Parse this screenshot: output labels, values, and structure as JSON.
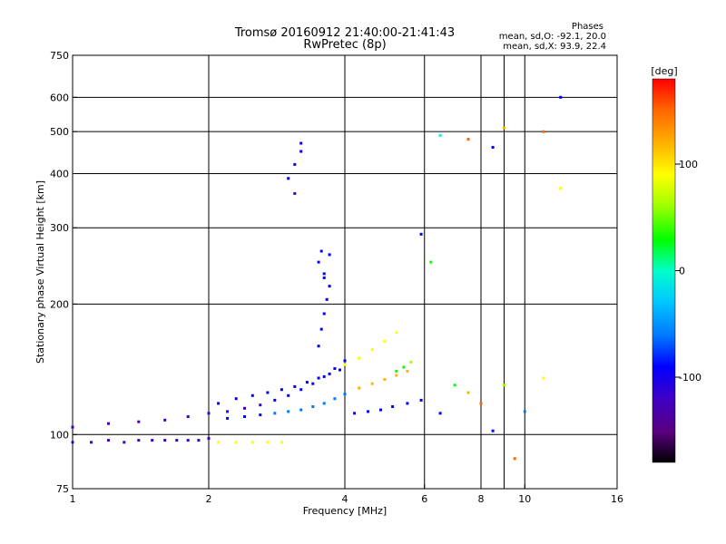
{
  "chart_data": {
    "type": "scatter",
    "title": "Tromsø 20160912 21:40:00-21:41:43",
    "subtitle": "RwPretec (8p)",
    "xlabel": "Frequency [MHz]",
    "ylabel": "Stationary phase Virtual Height [km]",
    "x_scale": "log",
    "y_scale": "log",
    "xlim": [
      1,
      16
    ],
    "ylim": [
      75,
      750
    ],
    "x_ticks": [
      1,
      2,
      4,
      6,
      8,
      10,
      16
    ],
    "x_gridlines": [
      2,
      4,
      6,
      8,
      9,
      10
    ],
    "y_ticks": [
      75,
      100,
      200,
      300,
      400,
      500,
      600,
      750
    ],
    "grid": true,
    "phase_stats": {
      "title": "Phases",
      "o_line": "mean, sd,O: -92.1, 20.0",
      "x_line": "mean, sd,X:  93.9, 22.4"
    },
    "colorbar": {
      "label": "[deg]",
      "range": [
        -180,
        180
      ],
      "ticks": [
        100,
        0,
        -100
      ],
      "palette": [
        "#000000",
        "#5a0080",
        "#3c00c8",
        "#0000ff",
        "#0078ff",
        "#00c8ff",
        "#00ffc8",
        "#00ff00",
        "#a0ff00",
        "#ffff00",
        "#ffb400",
        "#ff6400",
        "#ff0000"
      ]
    },
    "series": [
      {
        "x": [
          1.0,
          1.1,
          1.2,
          1.3,
          1.4,
          1.5,
          1.6,
          1.7,
          1.8,
          1.9,
          2.0
        ],
        "y": [
          96,
          96,
          97,
          96,
          97,
          97,
          97,
          97,
          97,
          97,
          98
        ],
        "phase": [
          -118,
          -120,
          -122,
          -121,
          -123,
          -122,
          -120,
          -121,
          -119,
          -118,
          -117
        ]
      },
      {
        "x": [
          1.0,
          1.2,
          1.4,
          1.6,
          1.8,
          2.0,
          2.2,
          2.4,
          2.6,
          2.8,
          3.0,
          3.2,
          3.4,
          3.6,
          3.8,
          4.0
        ],
        "y": [
          104,
          106,
          107,
          108,
          110,
          112,
          113,
          115,
          117,
          120,
          123,
          127,
          131,
          136,
          142,
          148
        ],
        "phase": [
          -108,
          -110,
          -112,
          -111,
          -113,
          -112,
          -110,
          -108,
          -106,
          -104,
          -102,
          -100,
          -98,
          -96,
          -94,
          -92
        ]
      },
      {
        "x": [
          2.1,
          2.3,
          2.5,
          2.7,
          2.9,
          3.1,
          3.3,
          3.5,
          3.7,
          3.9
        ],
        "y": [
          118,
          121,
          123,
          125,
          127,
          129,
          132,
          135,
          138,
          141
        ],
        "phase": [
          -100,
          -98,
          -97,
          -96,
          -95,
          -94,
          -92,
          -90,
          -89,
          -88
        ]
      },
      {
        "x": [
          2.2,
          2.4,
          2.6,
          2.8,
          3.0,
          3.2,
          3.4,
          3.6,
          3.8,
          4.0
        ],
        "y": [
          109,
          110,
          111,
          112,
          113,
          114,
          116,
          118,
          121,
          124
        ],
        "phase": [
          -80,
          -78,
          -76,
          -75,
          -74,
          -73,
          -72,
          -70,
          -68,
          -66
        ]
      },
      {
        "x": [
          2.1,
          2.3,
          2.5,
          2.7,
          2.9
        ],
        "y": [
          96,
          96,
          96,
          96,
          96
        ],
        "phase": [
          88,
          90,
          91,
          92,
          90
        ]
      },
      {
        "x": [
          3.0,
          3.1,
          3.2,
          3.1,
          3.2
        ],
        "y": [
          390,
          420,
          450,
          360,
          470
        ],
        "phase": [
          -105,
          -102,
          -100,
          -108,
          -101
        ]
      },
      {
        "x": [
          3.5,
          3.55,
          3.6,
          3.65,
          3.7,
          3.6,
          3.5,
          3.55,
          3.6,
          3.7
        ],
        "y": [
          160,
          175,
          190,
          205,
          220,
          235,
          250,
          265,
          230,
          260
        ],
        "phase": [
          -95,
          -92,
          -90,
          -88,
          -86,
          -94,
          -97,
          -99,
          -89,
          -84
        ]
      },
      {
        "x": [
          4.0,
          4.3,
          4.6,
          4.9,
          5.2
        ],
        "y": [
          145,
          150,
          157,
          164,
          172
        ],
        "phase": [
          95,
          97,
          98,
          100,
          101
        ]
      },
      {
        "x": [
          5.2,
          5.4,
          5.6
        ],
        "y": [
          140,
          143,
          147
        ],
        "phase": [
          35,
          40,
          45
        ]
      },
      {
        "x": [
          4.2,
          4.5,
          4.8,
          5.1,
          5.5,
          5.9
        ],
        "y": [
          112,
          113,
          114,
          116,
          118,
          120
        ],
        "phase": [
          -98,
          -96,
          -95,
          -94,
          -92,
          -90
        ]
      },
      {
        "x": [
          4.3,
          4.6,
          4.9,
          5.2,
          5.5
        ],
        "y": [
          128,
          131,
          134,
          137,
          140
        ],
        "phase": [
          118,
          120,
          122,
          124,
          126
        ]
      },
      {
        "x": [
          6.5,
          7.0,
          7.5,
          8.0,
          8.5,
          9.0,
          9.5,
          10.0,
          11.0
        ],
        "y": [
          112,
          130,
          125,
          118,
          102,
          130,
          88,
          113,
          135
        ],
        "phase": [
          -90,
          20,
          130,
          160,
          -80,
          60,
          150,
          -60,
          100
        ]
      },
      {
        "x": [
          5.9,
          6.2,
          6.5,
          7.5,
          8.5,
          9.0,
          11.0,
          12.0,
          12.0
        ],
        "y": [
          290,
          250,
          490,
          480,
          460,
          510,
          500,
          600,
          370
        ],
        "phase": [
          -98,
          40,
          10,
          160,
          -90,
          120,
          140,
          -92,
          90
        ]
      }
    ]
  }
}
